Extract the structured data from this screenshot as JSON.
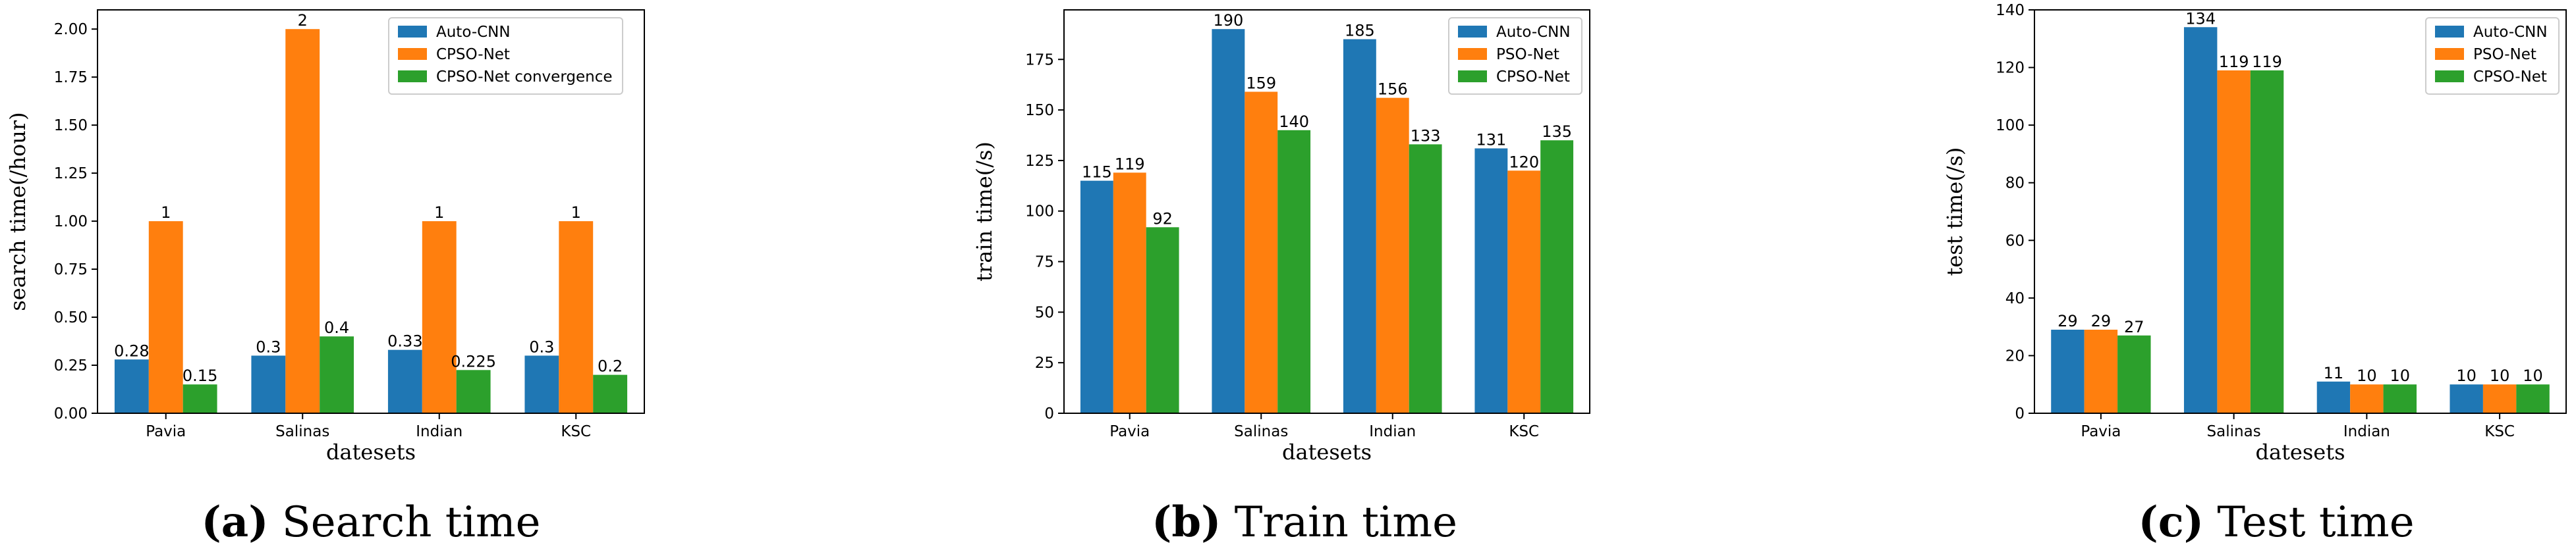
{
  "chart_data": [
    {
      "type": "bar",
      "categories": [
        "Pavia",
        "Salinas",
        "Indian",
        "KSC"
      ],
      "series": [
        {
          "name": "Auto-CNN",
          "values": [
            0.28,
            0.3,
            0.33,
            0.3
          ],
          "labels": [
            "0.28",
            "0.3",
            "0.33",
            "0.3"
          ],
          "color": "#1f77b4"
        },
        {
          "name": "CPSO-Net",
          "values": [
            1,
            2,
            1,
            1
          ],
          "labels": [
            "1",
            "2",
            "1",
            "1"
          ],
          "color": "#ff7f0e"
        },
        {
          "name": "CPSO-Net convergence",
          "values": [
            0.15,
            0.4,
            0.225,
            0.2
          ],
          "labels": [
            "0.15",
            "0.4",
            "0.225",
            "0.2"
          ],
          "color": "#2ca02c"
        }
      ],
      "xlabel": "datesets",
      "ylabel": "search time(/hour)",
      "ylim": [
        0,
        2.1
      ],
      "yticks": [
        0,
        0.25,
        0.5,
        0.75,
        1.0,
        1.25,
        1.5,
        1.75,
        2.0
      ],
      "ytick_labels": [
        "0.00",
        "0.25",
        "0.50",
        "0.75",
        "1.00",
        "1.25",
        "1.50",
        "1.75",
        "2.00"
      ],
      "legend": "top-right",
      "caption_letter": "(a)",
      "caption_text": "Search time"
    },
    {
      "type": "bar",
      "categories": [
        "Pavia",
        "Salinas",
        "Indian",
        "KSC"
      ],
      "series": [
        {
          "name": "Auto-CNN",
          "values": [
            115,
            190,
            185,
            131
          ],
          "labels": [
            "115",
            "190",
            "185",
            "131"
          ],
          "color": "#1f77b4"
        },
        {
          "name": "PSO-Net",
          "values": [
            119,
            159,
            156,
            120
          ],
          "labels": [
            "119",
            "159",
            "156",
            "120"
          ],
          "color": "#ff7f0e"
        },
        {
          "name": "CPSO-Net",
          "values": [
            92,
            140,
            133,
            135
          ],
          "labels": [
            "92",
            "140",
            "133",
            "135"
          ],
          "color": "#2ca02c"
        }
      ],
      "xlabel": "datesets",
      "ylabel": "train time(/s)",
      "ylim": [
        0,
        199.5
      ],
      "yticks": [
        0,
        25,
        50,
        75,
        100,
        125,
        150,
        175
      ],
      "ytick_labels": [
        "0",
        "25",
        "50",
        "75",
        "100",
        "125",
        "150",
        "175"
      ],
      "legend": "top-right",
      "caption_letter": "(b)",
      "caption_text": "Train time"
    },
    {
      "type": "bar",
      "categories": [
        "Pavia",
        "Salinas",
        "Indian",
        "KSC"
      ],
      "series": [
        {
          "name": "Auto-CNN",
          "values": [
            29,
            134,
            11,
            10
          ],
          "labels": [
            "29",
            "134",
            "11",
            "10"
          ],
          "color": "#1f77b4"
        },
        {
          "name": "PSO-Net",
          "values": [
            29,
            119,
            10,
            10
          ],
          "labels": [
            "29",
            "119",
            "10",
            "10"
          ],
          "color": "#ff7f0e"
        },
        {
          "name": "CPSO-Net",
          "values": [
            27,
            119,
            10,
            10
          ],
          "labels": [
            "27",
            "119",
            "10",
            "10"
          ],
          "color": "#2ca02c"
        }
      ],
      "xlabel": "datesets",
      "ylabel": "test time(/s)",
      "ylim": [
        0,
        140
      ],
      "yticks": [
        0,
        20,
        40,
        60,
        80,
        100,
        120,
        140
      ],
      "ytick_labels": [
        "0",
        "20",
        "40",
        "60",
        "80",
        "100",
        "120",
        "140"
      ],
      "legend": "top-right",
      "caption_letter": "(c)",
      "caption_text": "Test time"
    }
  ]
}
